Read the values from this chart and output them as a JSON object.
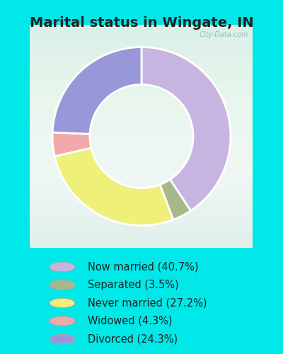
{
  "title": "Marital status in Wingate, IN",
  "slices": [
    {
      "label": "Now married (40.7%)",
      "value": 40.7,
      "color": "#c8b4e0"
    },
    {
      "label": "Separated (3.5%)",
      "value": 3.5,
      "color": "#a8b888"
    },
    {
      "label": "Never married (27.2%)",
      "value": 27.2,
      "color": "#eef07a"
    },
    {
      "label": "Widowed (4.3%)",
      "value": 4.3,
      "color": "#f0a8a8"
    },
    {
      "label": "Divorced (24.3%)",
      "value": 24.3,
      "color": "#9898d8"
    }
  ],
  "background_color": "#00e8e8",
  "chart_bg_top": "#e8f4e8",
  "chart_bg_bottom": "#c8e8d8",
  "title_fontsize": 14,
  "legend_fontsize": 10.5,
  "watermark": "City-Data.com",
  "startangle": 90
}
